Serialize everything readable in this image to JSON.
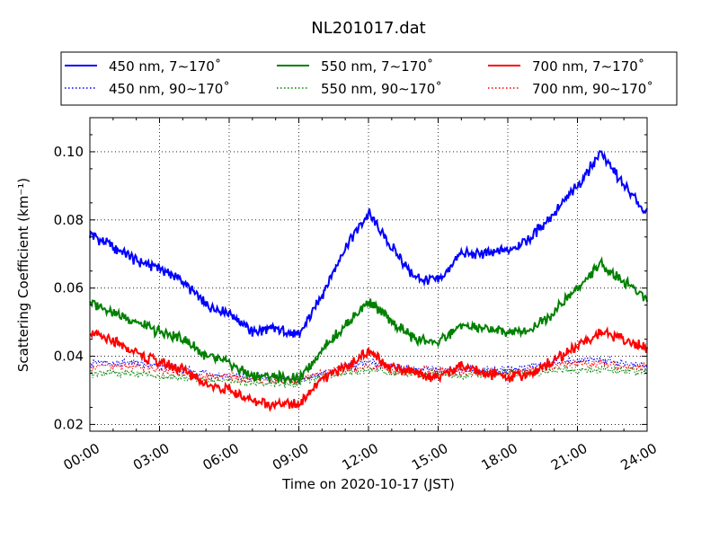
{
  "chart_data": {
    "type": "line",
    "title": "NL201017.dat",
    "xlabel": "Time on 2020-10-17 (JST)",
    "ylabel": "Scattering Coefficient (km⁻¹)",
    "xlim": [
      0,
      24
    ],
    "ylim": [
      0.018,
      0.11
    ],
    "x_ticks": [
      0,
      3,
      6,
      9,
      12,
      15,
      18,
      21,
      24
    ],
    "x_tick_labels": [
      "00:00",
      "03:00",
      "06:00",
      "09:00",
      "12:00",
      "15:00",
      "18:00",
      "21:00",
      "24:00"
    ],
    "y_ticks": [
      0.02,
      0.04,
      0.06,
      0.08,
      0.1
    ],
    "y_tick_labels": [
      "0.02",
      "0.04",
      "0.06",
      "0.08",
      "0.10"
    ],
    "grid": true,
    "legend_position": "top, above plot, 3 columns",
    "x": [
      0,
      1,
      2,
      3,
      4,
      5,
      6,
      7,
      8,
      9,
      10,
      11,
      12,
      13,
      14,
      15,
      16,
      17,
      18,
      19,
      20,
      21,
      22,
      23,
      24
    ],
    "series": [
      {
        "name": "450 nm, 7∼170˚",
        "color": "#0000ff",
        "style": "solid",
        "values": [
          0.076,
          0.072,
          0.068,
          0.066,
          0.062,
          0.055,
          0.053,
          0.047,
          0.048,
          0.046,
          0.058,
          0.072,
          0.082,
          0.072,
          0.063,
          0.062,
          0.07,
          0.07,
          0.071,
          0.075,
          0.082,
          0.09,
          0.1,
          0.09,
          0.082
        ]
      },
      {
        "name": "450 nm, 90∼170˚",
        "color": "#0000ff",
        "style": "dotted",
        "values": [
          0.038,
          0.038,
          0.038,
          0.037,
          0.036,
          0.035,
          0.034,
          0.034,
          0.034,
          0.033,
          0.035,
          0.037,
          0.038,
          0.037,
          0.036,
          0.036,
          0.036,
          0.036,
          0.036,
          0.037,
          0.038,
          0.039,
          0.039,
          0.038,
          0.037
        ]
      },
      {
        "name": "550 nm, 7∼170˚",
        "color": "#008000",
        "style": "solid",
        "values": [
          0.056,
          0.053,
          0.05,
          0.047,
          0.045,
          0.04,
          0.038,
          0.034,
          0.034,
          0.033,
          0.042,
          0.049,
          0.056,
          0.05,
          0.045,
          0.044,
          0.049,
          0.048,
          0.047,
          0.048,
          0.053,
          0.06,
          0.067,
          0.062,
          0.057
        ]
      },
      {
        "name": "550 nm, 90∼170˚",
        "color": "#008000",
        "style": "dotted",
        "values": [
          0.035,
          0.035,
          0.035,
          0.034,
          0.034,
          0.033,
          0.033,
          0.032,
          0.032,
          0.032,
          0.034,
          0.035,
          0.036,
          0.035,
          0.035,
          0.035,
          0.034,
          0.035,
          0.035,
          0.035,
          0.036,
          0.036,
          0.036,
          0.036,
          0.035
        ]
      },
      {
        "name": "700 nm, 7∼170˚",
        "color": "#ff0000",
        "style": "solid",
        "values": [
          0.047,
          0.044,
          0.041,
          0.038,
          0.036,
          0.032,
          0.03,
          0.027,
          0.026,
          0.026,
          0.033,
          0.037,
          0.041,
          0.037,
          0.035,
          0.034,
          0.037,
          0.035,
          0.034,
          0.035,
          0.039,
          0.043,
          0.047,
          0.045,
          0.042
        ]
      },
      {
        "name": "700 nm, 90∼170˚",
        "color": "#ff0000",
        "style": "dotted",
        "values": [
          0.037,
          0.037,
          0.037,
          0.036,
          0.035,
          0.034,
          0.034,
          0.033,
          0.033,
          0.033,
          0.035,
          0.036,
          0.037,
          0.036,
          0.036,
          0.036,
          0.035,
          0.035,
          0.035,
          0.036,
          0.037,
          0.038,
          0.038,
          0.037,
          0.037
        ]
      }
    ]
  }
}
